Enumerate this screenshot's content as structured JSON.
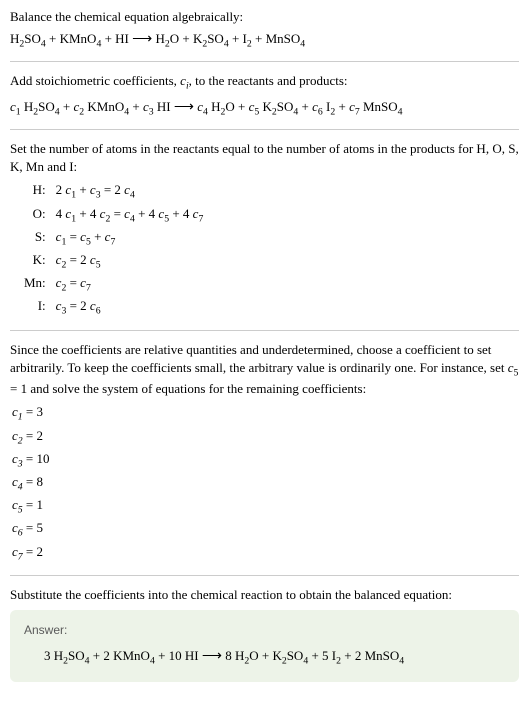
{
  "intro": {
    "line1": "Balance the chemical equation algebraically:",
    "eq_lhs_1": "H",
    "eq_lhs_2": "SO",
    "eq_lhs_3": " + KMnO",
    "eq_lhs_4": " + HI ",
    "arrow": "⟶",
    "eq_rhs_1": " H",
    "eq_rhs_2": "O + K",
    "eq_rhs_3": "SO",
    "eq_rhs_4": " + I",
    "eq_rhs_5": " + MnSO"
  },
  "stoich": {
    "text_a": "Add stoichiometric coefficients, ",
    "ci": "c",
    "ci_sub": "i",
    "text_b": ", to the reactants and products:",
    "c1": "c",
    "c2": "c",
    "c3": "c",
    "c4": "c",
    "c5": "c",
    "c6": "c",
    "c7": "c",
    "s1": "1",
    "s2": "2",
    "s3": "3",
    "s4": "4",
    "s5": "5",
    "s6": "6",
    "s7": "7",
    "sp1": " H",
    "sp2": "SO",
    "sp3": " + ",
    "sp4": " KMnO",
    "sp5": " HI ",
    "arrow": "⟶",
    "sp6": " H",
    "sp7": "O + ",
    "sp8": " K",
    "sp9": "SO",
    "sp10": " I",
    "sp11": " MnSO"
  },
  "atoms": {
    "intro": "Set the number of atoms in the reactants equal to the number of atoms in the products for H, O, S, K, Mn and I:",
    "rows": [
      {
        "label": "H:",
        "eq_parts": [
          "2 ",
          "c",
          "1",
          " + ",
          "c",
          "3",
          " = 2 ",
          "c",
          "4"
        ]
      },
      {
        "label": "O:",
        "eq_parts": [
          "4 ",
          "c",
          "1",
          " + 4 ",
          "c",
          "2",
          " = ",
          "c",
          "4",
          " + 4 ",
          "c",
          "5",
          " + 4 ",
          "c",
          "7"
        ]
      },
      {
        "label": "S:",
        "eq_parts": [
          "",
          "c",
          "1",
          " = ",
          "c",
          "5",
          " + ",
          "c",
          "7"
        ]
      },
      {
        "label": "K:",
        "eq_parts": [
          "",
          "c",
          "2",
          " = 2 ",
          "c",
          "5"
        ]
      },
      {
        "label": "Mn:",
        "eq_parts": [
          "",
          "c",
          "2",
          " = ",
          "c",
          "7"
        ]
      },
      {
        "label": "I:",
        "eq_parts": [
          "",
          "c",
          "3",
          " = 2 ",
          "c",
          "6"
        ]
      }
    ]
  },
  "solve": {
    "text_a": "Since the coefficients are relative quantities and underdetermined, choose a coefficient to set arbitrarily. To keep the coefficients small, the arbitrary value is ordinarily one. For instance, set ",
    "c5": "c",
    "s5": "5",
    "text_b": " = 1 and solve the system of equations for the remaining coefficients:",
    "coeffs": [
      {
        "c": "c",
        "i": "1",
        "v": " = 3"
      },
      {
        "c": "c",
        "i": "2",
        "v": " = 2"
      },
      {
        "c": "c",
        "i": "3",
        "v": " = 10"
      },
      {
        "c": "c",
        "i": "4",
        "v": " = 8"
      },
      {
        "c": "c",
        "i": "5",
        "v": " = 1"
      },
      {
        "c": "c",
        "i": "6",
        "v": " = 5"
      },
      {
        "c": "c",
        "i": "7",
        "v": " = 2"
      }
    ]
  },
  "final": {
    "text": "Substitute the coefficients into the chemical reaction to obtain the balanced equation:",
    "answer_label": "Answer:",
    "eq_a": "3 H",
    "eq_b": "SO",
    "eq_c": " + 2 KMnO",
    "eq_d": " + 10 HI ",
    "arrow": "⟶",
    "eq_e": " 8 H",
    "eq_f": "O + K",
    "eq_g": "SO",
    "eq_h": " + 5 I",
    "eq_i": " + 2 MnSO"
  },
  "subs": {
    "n2": "2",
    "n4": "4"
  }
}
